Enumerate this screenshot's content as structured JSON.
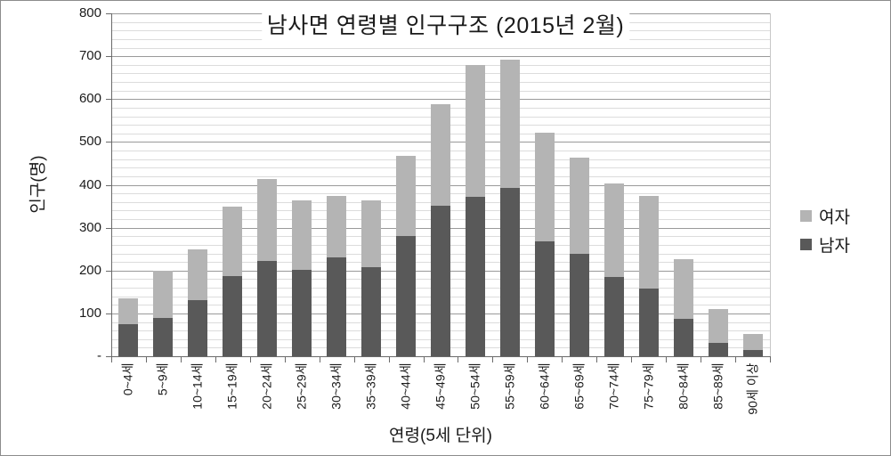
{
  "chart_data": {
    "type": "bar",
    "stacked": true,
    "title": "남사면 연령별 인구구조 (2015년 2월)",
    "xlabel": "연령(5세 단위)",
    "ylabel": "인구(명)",
    "ylim": [
      0,
      800
    ],
    "ytick_step": 100,
    "minor_gridline_step": 20,
    "zero_tick_label": "-",
    "grid": true,
    "legend_position": "right",
    "legend": [
      {
        "label": "여자",
        "color": "#b4b4b4"
      },
      {
        "label": "남자",
        "color": "#595959"
      }
    ],
    "categories": [
      "0~4세",
      "5~9세",
      "10~14세",
      "15~19세",
      "20~24세",
      "25~29세",
      "30~34세",
      "35~39세",
      "40~44세",
      "45~49세",
      "50~54세",
      "55~59세",
      "60~64세",
      "65~69세",
      "70~74세",
      "75~79세",
      "80~84세",
      "85~89세",
      "90세 이상"
    ],
    "series": [
      {
        "name": "남자",
        "color": "#595959",
        "values": [
          75,
          89,
          130,
          188,
          222,
          202,
          230,
          207,
          280,
          352,
          373,
          392,
          268,
          239,
          186,
          158,
          88,
          31,
          14
        ]
      },
      {
        "name": "여자",
        "color": "#b4b4b4",
        "values": [
          60,
          110,
          120,
          162,
          192,
          162,
          144,
          156,
          187,
          237,
          306,
          299,
          253,
          224,
          218,
          216,
          139,
          80,
          37
        ]
      }
    ],
    "totals": [
      135,
      199,
      250,
      350,
      414,
      364,
      374,
      363,
      467,
      589,
      679,
      691,
      521,
      463,
      404,
      374,
      227,
      111,
      51
    ]
  }
}
